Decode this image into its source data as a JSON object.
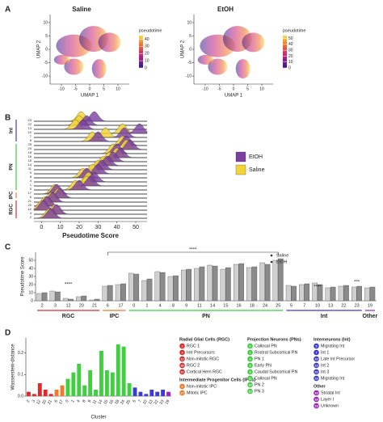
{
  "chart_data": [
    {
      "type": "scatter",
      "panel": "A",
      "title": "Saline",
      "x_label": "UMAP 1",
      "y_label": "UMAP 2",
      "xlim": [
        -14,
        14
      ],
      "xticks": [
        -10,
        -5,
        0,
        5,
        10
      ],
      "ylim": [
        -13,
        13
      ],
      "yticks": [
        -10,
        -5,
        0,
        5,
        10
      ],
      "colorbar_title": "pseudotime",
      "clim": [
        0,
        45
      ],
      "colorbar_ticks": [
        0,
        10,
        20,
        30,
        40
      ]
    },
    {
      "type": "scatter",
      "title": "EtOH",
      "x_label": "UMAP 1",
      "y_label": "UMAP 2",
      "xlim": [
        -14,
        14
      ],
      "xticks": [
        -10,
        -5,
        0,
        5,
        10
      ],
      "ylim": [
        -13,
        13
      ],
      "yticks": [
        -10,
        -5,
        0,
        5,
        10
      ],
      "colorbar_title": "pseudotime",
      "clim": [
        0,
        55
      ],
      "colorbar_ticks": [
        0,
        10,
        20,
        30,
        40,
        50
      ]
    },
    {
      "type": "ridge",
      "panel": "B",
      "x_label": "Pseudotime Score",
      "xlim": [
        -4,
        56
      ],
      "xticks": [
        0,
        10,
        20,
        30,
        40,
        50
      ],
      "groups": [
        {
          "name": "Int",
          "color": "#3b3bd8",
          "categories": [
            "23",
            "22",
            "13",
            "10",
            "7",
            "5"
          ]
        },
        {
          "name": "PN",
          "color": "#3fcf3f",
          "categories": [
            "25",
            "24",
            "18",
            "16",
            "15",
            "14",
            "11",
            "9",
            "8",
            "4",
            "1",
            "0"
          ]
        },
        {
          "name": "IPC",
          "color": "#f07a2a",
          "categories": [
            "17",
            "6"
          ]
        },
        {
          "name": "RGC",
          "color": "#e02a2a",
          "categories": [
            "21",
            "20",
            "12",
            "3",
            "2"
          ]
        }
      ],
      "series": [
        {
          "name": "EtOH",
          "color": "#7b3fa0",
          "values": [
            28,
            24,
            22,
            52,
            44,
            30,
            45,
            47,
            40,
            42,
            38,
            35,
            32,
            30,
            24,
            28,
            26,
            20,
            8,
            10,
            6,
            3,
            1,
            8,
            5
          ]
        },
        {
          "name": "Saline",
          "color": "#f2d43a",
          "values": [
            21,
            20,
            18,
            43,
            34,
            27,
            43,
            45,
            38,
            40,
            36,
            33,
            30,
            27,
            22,
            25,
            24,
            18,
            7,
            9,
            5,
            2,
            0,
            7,
            4
          ]
        }
      ]
    },
    {
      "type": "bar",
      "panel": "C",
      "y_label": "Pseudotime Score",
      "ylim": [
        0,
        60
      ],
      "yticks": [
        0,
        10,
        20,
        30,
        40,
        50
      ],
      "groups": [
        {
          "name": "RGC",
          "color": "#e02a2a",
          "categories": [
            "2",
            "3",
            "12",
            "20",
            "21"
          ]
        },
        {
          "name": "IPC",
          "color": "#f07a2a",
          "categories": [
            "6",
            "17"
          ]
        },
        {
          "name": "PN",
          "color": "#3fcf3f",
          "categories": [
            "0",
            "1",
            "4",
            "8",
            "9",
            "11",
            "14",
            "15",
            "16",
            "18",
            "24",
            "25"
          ]
        },
        {
          "name": "Int",
          "color": "#3b3bd8",
          "categories": [
            "5",
            "7",
            "10",
            "13",
            "22",
            "23"
          ]
        },
        {
          "name": "Other",
          "color": "#a020c0",
          "categories": [
            "19"
          ]
        }
      ],
      "series": [
        {
          "name": "Saline",
          "color": "#d0d0d0",
          "values": [
            9,
            12,
            3,
            5,
            1,
            18,
            20,
            34,
            25,
            36,
            30,
            38,
            40,
            44,
            39,
            45,
            41,
            47,
            50,
            19,
            20,
            22,
            16,
            18,
            17,
            16
          ]
        },
        {
          "name": "EtOH",
          "color": "#8a8a8a",
          "values": [
            10,
            11,
            2,
            6,
            2,
            19,
            21,
            33,
            27,
            35,
            31,
            39,
            42,
            43,
            41,
            46,
            42,
            45,
            52,
            18,
            21,
            20,
            17,
            19,
            18,
            17
          ]
        }
      ],
      "annotations": [
        "****",
        "****",
        "****",
        "***"
      ]
    },
    {
      "type": "bar",
      "panel": "D",
      "y_label": "Wasserstein-distance",
      "x_label": "Cluster",
      "ylim": [
        0,
        0.27
      ],
      "yticks": [
        {
          "value": 0,
          "label": "0.0"
        },
        {
          "value": 0.1,
          "label": "0.1"
        },
        {
          "value": 0.2,
          "label": "0.2"
        }
      ],
      "groups": [
        {
          "name": "RGC",
          "color": "#e02a2a",
          "categories": [
            "2",
            "3",
            "12",
            "20",
            "21"
          ]
        },
        {
          "name": "IPC",
          "color": "#f07a2a",
          "categories": [
            "6",
            "17"
          ]
        },
        {
          "name": "PN",
          "color": "#3fcf3f",
          "categories": [
            "0",
            "1",
            "4",
            "8",
            "9",
            "11",
            "14",
            "15",
            "16",
            "18",
            "24",
            "25"
          ]
        },
        {
          "name": "Int",
          "color": "#3b3bd8",
          "categories": [
            "5",
            "7",
            "10",
            "13",
            "22",
            "23"
          ]
        },
        {
          "name": "Other",
          "color": "#a020c0",
          "categories": [
            "19"
          ]
        }
      ],
      "values": [
        0.02,
        0.01,
        0.06,
        0.03,
        0.01,
        0.03,
        0.05,
        0.08,
        0.11,
        0.15,
        0.05,
        0.12,
        0.03,
        0.21,
        0.12,
        0.11,
        0.24,
        0.23,
        0.06,
        0.04,
        0.02,
        0.01,
        0.03,
        0.02,
        0.03,
        0.02
      ],
      "legend_groups": [
        {
          "title": "Radial Glial Cells (RGC)",
          "color": "#e02a2a",
          "items": [
            {
              "id": "2",
              "label": "RGC 1"
            },
            {
              "id": "3",
              "label": "Intr Precursors"
            },
            {
              "id": "12",
              "label": "Non-mitotic RGC"
            },
            {
              "id": "20",
              "label": "RGC 2"
            },
            {
              "id": "21",
              "label": "Cortical Hem RGC"
            }
          ]
        },
        {
          "title": "Intermediate Progenitor Cells (IPCs)",
          "color": "#f07a2a",
          "items": [
            {
              "id": "6",
              "label": "Non-mitotic IPC"
            },
            {
              "id": "17",
              "label": "Mitotic IPC"
            }
          ]
        },
        {
          "title": "Projection Neurons (PNs)",
          "color": "#3fcf3f",
          "items": [
            {
              "id": "0",
              "label": "Callosal PN"
            },
            {
              "id": "1",
              "label": "Rostral Subcortical PN"
            },
            {
              "id": "4",
              "label": "PN 1"
            },
            {
              "id": "8",
              "label": "Early PN"
            },
            {
              "id": "9",
              "label": "Caudal Subcortical PN"
            },
            {
              "id": "11",
              "label": "Callosal PN"
            },
            {
              "id": "14",
              "label": "PN 2"
            },
            {
              "id": "15",
              "label": "PN 3"
            }
          ]
        },
        {
          "title": "Interneurons (Int)",
          "color": "#3b3bd8",
          "items": [
            {
              "id": "5",
              "label": "Migrating Int"
            },
            {
              "id": "7",
              "label": "Int 1"
            },
            {
              "id": "10",
              "label": "Late Int Precursor"
            },
            {
              "id": "13",
              "label": "Int 2"
            },
            {
              "id": "22",
              "label": "Int 3"
            },
            {
              "id": "23",
              "label": "Migrating Int"
            }
          ]
        },
        {
          "title": "Other",
          "color": "#a020c0",
          "items": [
            {
              "id": "16",
              "label": "Striatal Int"
            },
            {
              "id": "18",
              "label": "Layer I"
            },
            {
              "id": "19",
              "label": "Unknown"
            }
          ]
        }
      ]
    }
  ]
}
